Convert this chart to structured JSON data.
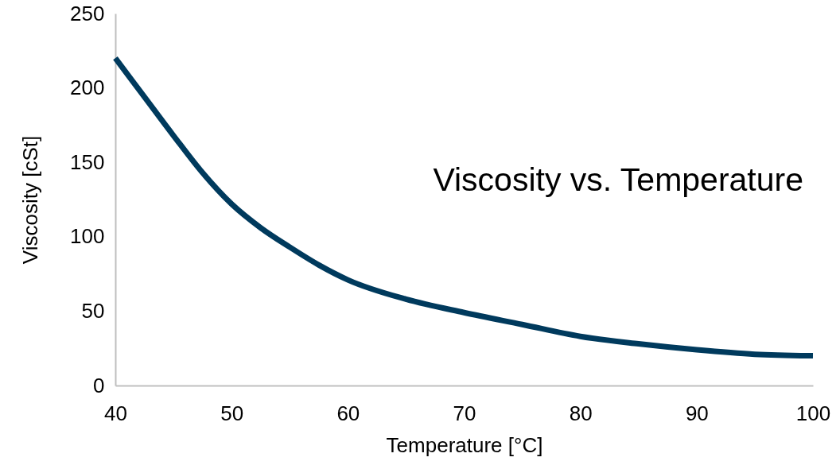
{
  "chart_data": {
    "type": "line",
    "title": "Viscosity vs. Temperature",
    "xlabel": "Temperature [°C]",
    "ylabel": "Viscosity [cSt]",
    "x": [
      40,
      42.5,
      45,
      47.5,
      50,
      52.5,
      55,
      57.5,
      60,
      65,
      70,
      75,
      80,
      85,
      90,
      95,
      100
    ],
    "series": [
      {
        "color": "#003a5d",
        "values": [
          220,
          194,
          168,
          143,
          122,
          106,
          93,
          81,
          71,
          58,
          49,
          41,
          33,
          28,
          24,
          21,
          20
        ]
      }
    ],
    "xlim": [
      40,
      100
    ],
    "xticks": [
      40,
      50,
      60,
      70,
      80,
      90,
      100
    ],
    "ylim": [
      0,
      250
    ],
    "yticks": [
      0,
      50,
      100,
      150,
      200,
      250
    ]
  }
}
